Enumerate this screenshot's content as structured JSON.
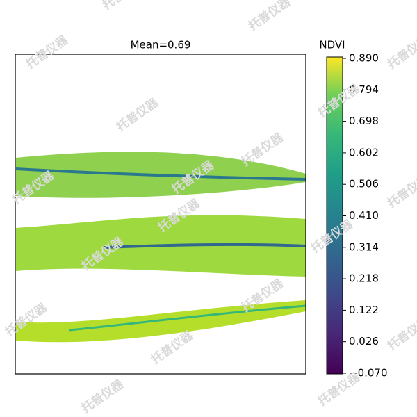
{
  "chart_data": {
    "type": "heatmap",
    "title": "Mean=0.69",
    "colorbar_label": "NDVI",
    "colormap": "viridis",
    "clim": [
      -0.07,
      0.89
    ],
    "cticks": [
      {
        "value": 0.89,
        "label": "0.890"
      },
      {
        "value": 0.794,
        "label": "0.794"
      },
      {
        "value": 0.698,
        "label": "0.698"
      },
      {
        "value": 0.602,
        "label": "0.602"
      },
      {
        "value": 0.506,
        "label": "0.506"
      },
      {
        "value": 0.41,
        "label": "0.410"
      },
      {
        "value": 0.314,
        "label": "0.314"
      },
      {
        "value": 0.218,
        "label": "0.218"
      },
      {
        "value": 0.122,
        "label": "0.122"
      },
      {
        "value": 0.026,
        "label": "0.026"
      },
      {
        "value": -0.07,
        "label": "−0.070"
      }
    ],
    "watermark": "托普仪器"
  }
}
